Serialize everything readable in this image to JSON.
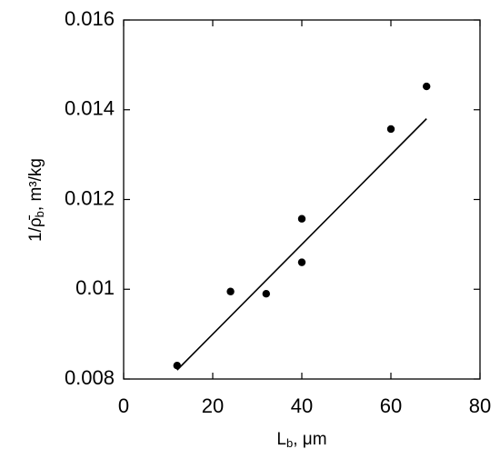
{
  "chart_data": {
    "type": "scatter",
    "xlabel_parts": [
      "L",
      "b",
      ", μm"
    ],
    "ylabel_parts": [
      "1/ρ̄",
      "b",
      ", m³/kg"
    ],
    "x": [
      12,
      24,
      32,
      40,
      40,
      60,
      68
    ],
    "values": [
      0.0083,
      0.00995,
      0.0099,
      0.01157,
      0.0106,
      0.01357,
      0.01452
    ],
    "color": "#000000",
    "fit_line": {
      "x": [
        12,
        68
      ],
      "values": [
        0.0082,
        0.0138
      ],
      "color": "#000000"
    },
    "xlim": [
      0,
      80
    ],
    "xticks": [
      0,
      20,
      40,
      60,
      80
    ],
    "ylim": [
      0.008,
      0.016
    ],
    "yticks": [
      0.008,
      0.01,
      0.012,
      0.014,
      0.016
    ],
    "grid": false
  }
}
